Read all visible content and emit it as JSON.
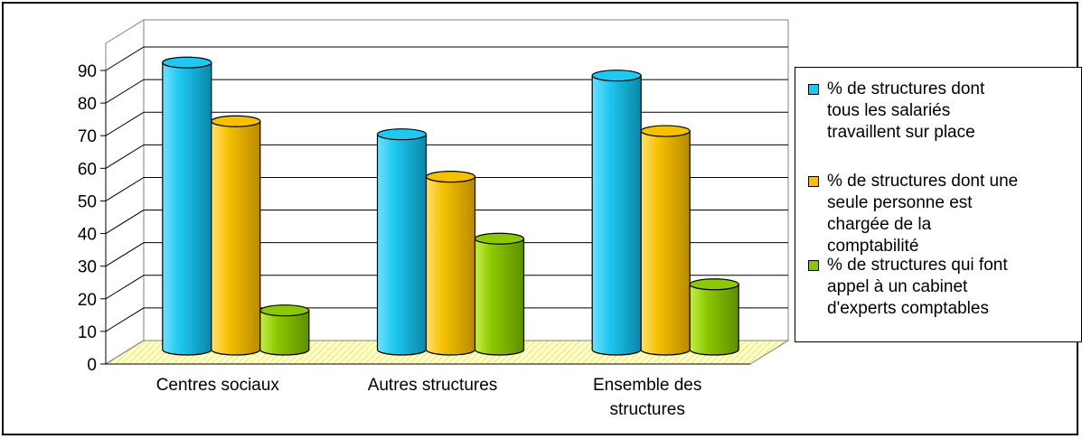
{
  "chart_data": {
    "type": "bar",
    "categories": [
      "Centres sociaux",
      "Autres structures",
      "Ensemble des structures"
    ],
    "category_lines": [
      [
        "Centres sociaux"
      ],
      [
        "Autres structures"
      ],
      [
        "Ensemble des",
        "structures"
      ]
    ],
    "series": [
      {
        "name": "% de structures dont tous les salariés travaillent sur place",
        "color": "#1ec8f0",
        "values": [
          88,
          66,
          84
        ]
      },
      {
        "name": "% de structures dont une seule personne est chargée de la comptabilité",
        "color": "#f5c000",
        "values": [
          70,
          53,
          67
        ]
      },
      {
        "name": "% de structures qui font appel à un cabinet d'experts comptables",
        "color": "#8cc800",
        "values": [
          12,
          34,
          20
        ]
      }
    ],
    "ylim": [
      0,
      90
    ],
    "yticks": [
      0,
      10,
      20,
      30,
      40,
      50,
      60,
      70,
      80,
      90
    ],
    "grid": true,
    "legend_position": "right",
    "title": "",
    "xlabel": "",
    "ylabel": ""
  },
  "legend": {
    "items": [
      {
        "lines": [
          "% de structures dont",
          "tous les salariés",
          "travaillent sur place"
        ]
      },
      {
        "lines": [
          "% de structures dont une",
          "seule personne est",
          "chargée de la",
          "comptabilité"
        ]
      },
      {
        "lines": [
          "% de structures qui font",
          "appel à un cabinet",
          "d'experts comptables"
        ]
      }
    ]
  }
}
